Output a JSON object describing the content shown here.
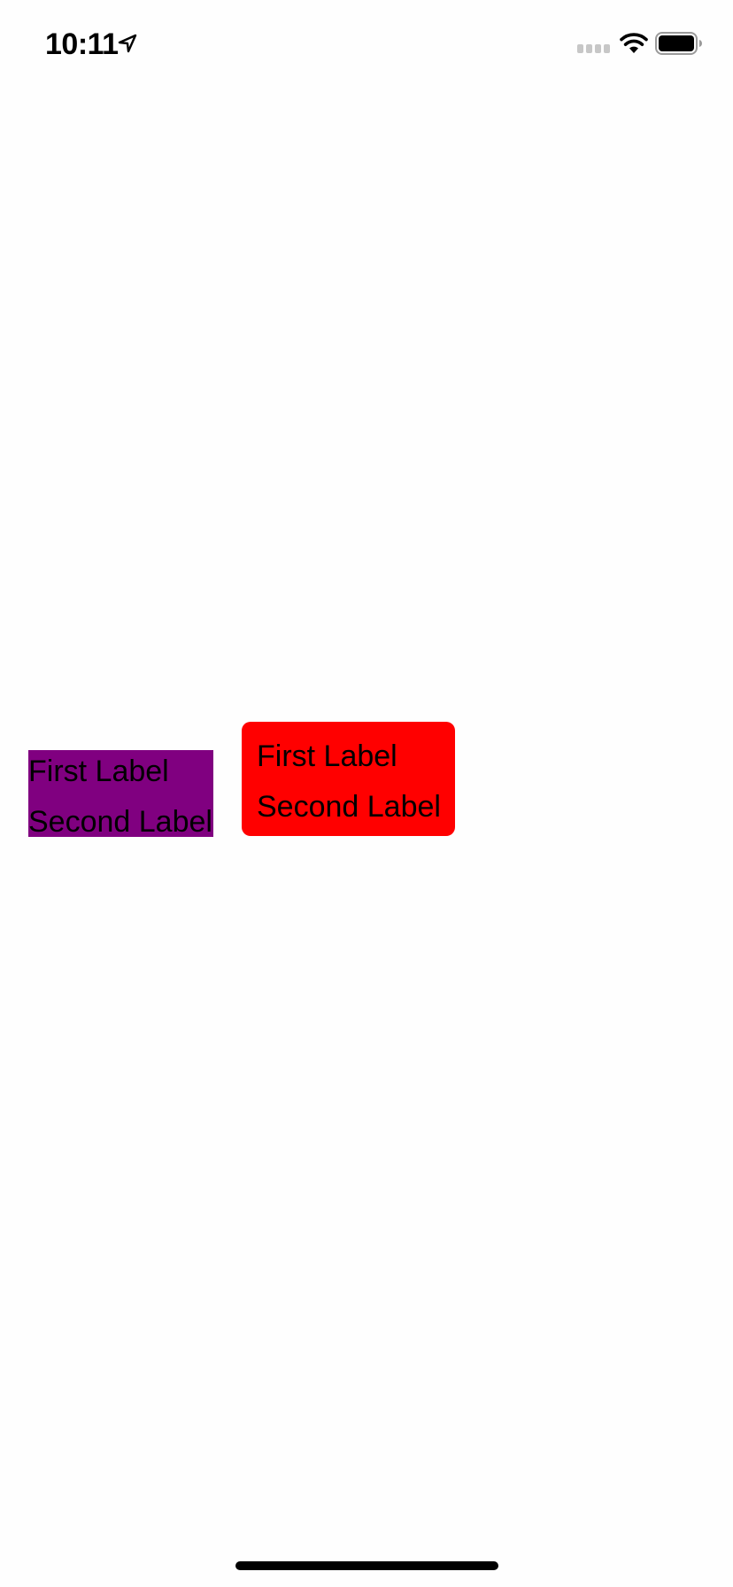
{
  "status_bar": {
    "time": "10:11",
    "icons": [
      "location-arrow-icon",
      "cellular-signal-icon",
      "wifi-icon",
      "battery-icon"
    ]
  },
  "stacks": [
    {
      "background": "#800080",
      "corner": "square",
      "labels": [
        "First Label",
        "Second Label"
      ]
    },
    {
      "background": "#ff0000",
      "corner": "rounded",
      "labels": [
        "First Label",
        "Second Label"
      ]
    }
  ],
  "colors": {
    "screen_background": "#fefefe",
    "label_text": "#000000",
    "home_indicator": "#000000"
  }
}
